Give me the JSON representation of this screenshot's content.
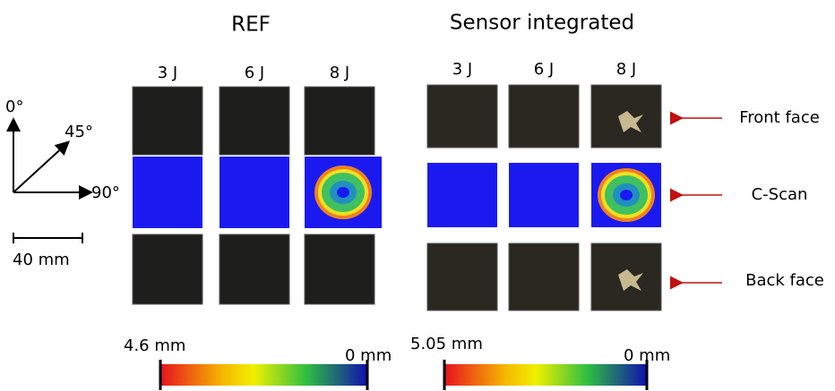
{
  "groups": [
    {
      "title": "REF",
      "energies": [
        "3 J",
        "6 J",
        "8 J"
      ],
      "colorbar": {
        "max_label": "4.6 mm",
        "min_label": "0 mm"
      }
    },
    {
      "title": "Sensor integrated",
      "energies": [
        "3 J",
        "6 J",
        "8 J"
      ],
      "colorbar": {
        "max_label": "5.05 mm",
        "min_label": "0 mm"
      }
    }
  ],
  "row_labels": [
    "Front face",
    "C-Scan",
    "Back face"
  ],
  "orientation": [
    "0°",
    "45°",
    "90°"
  ],
  "scale_bar": "40 mm"
}
